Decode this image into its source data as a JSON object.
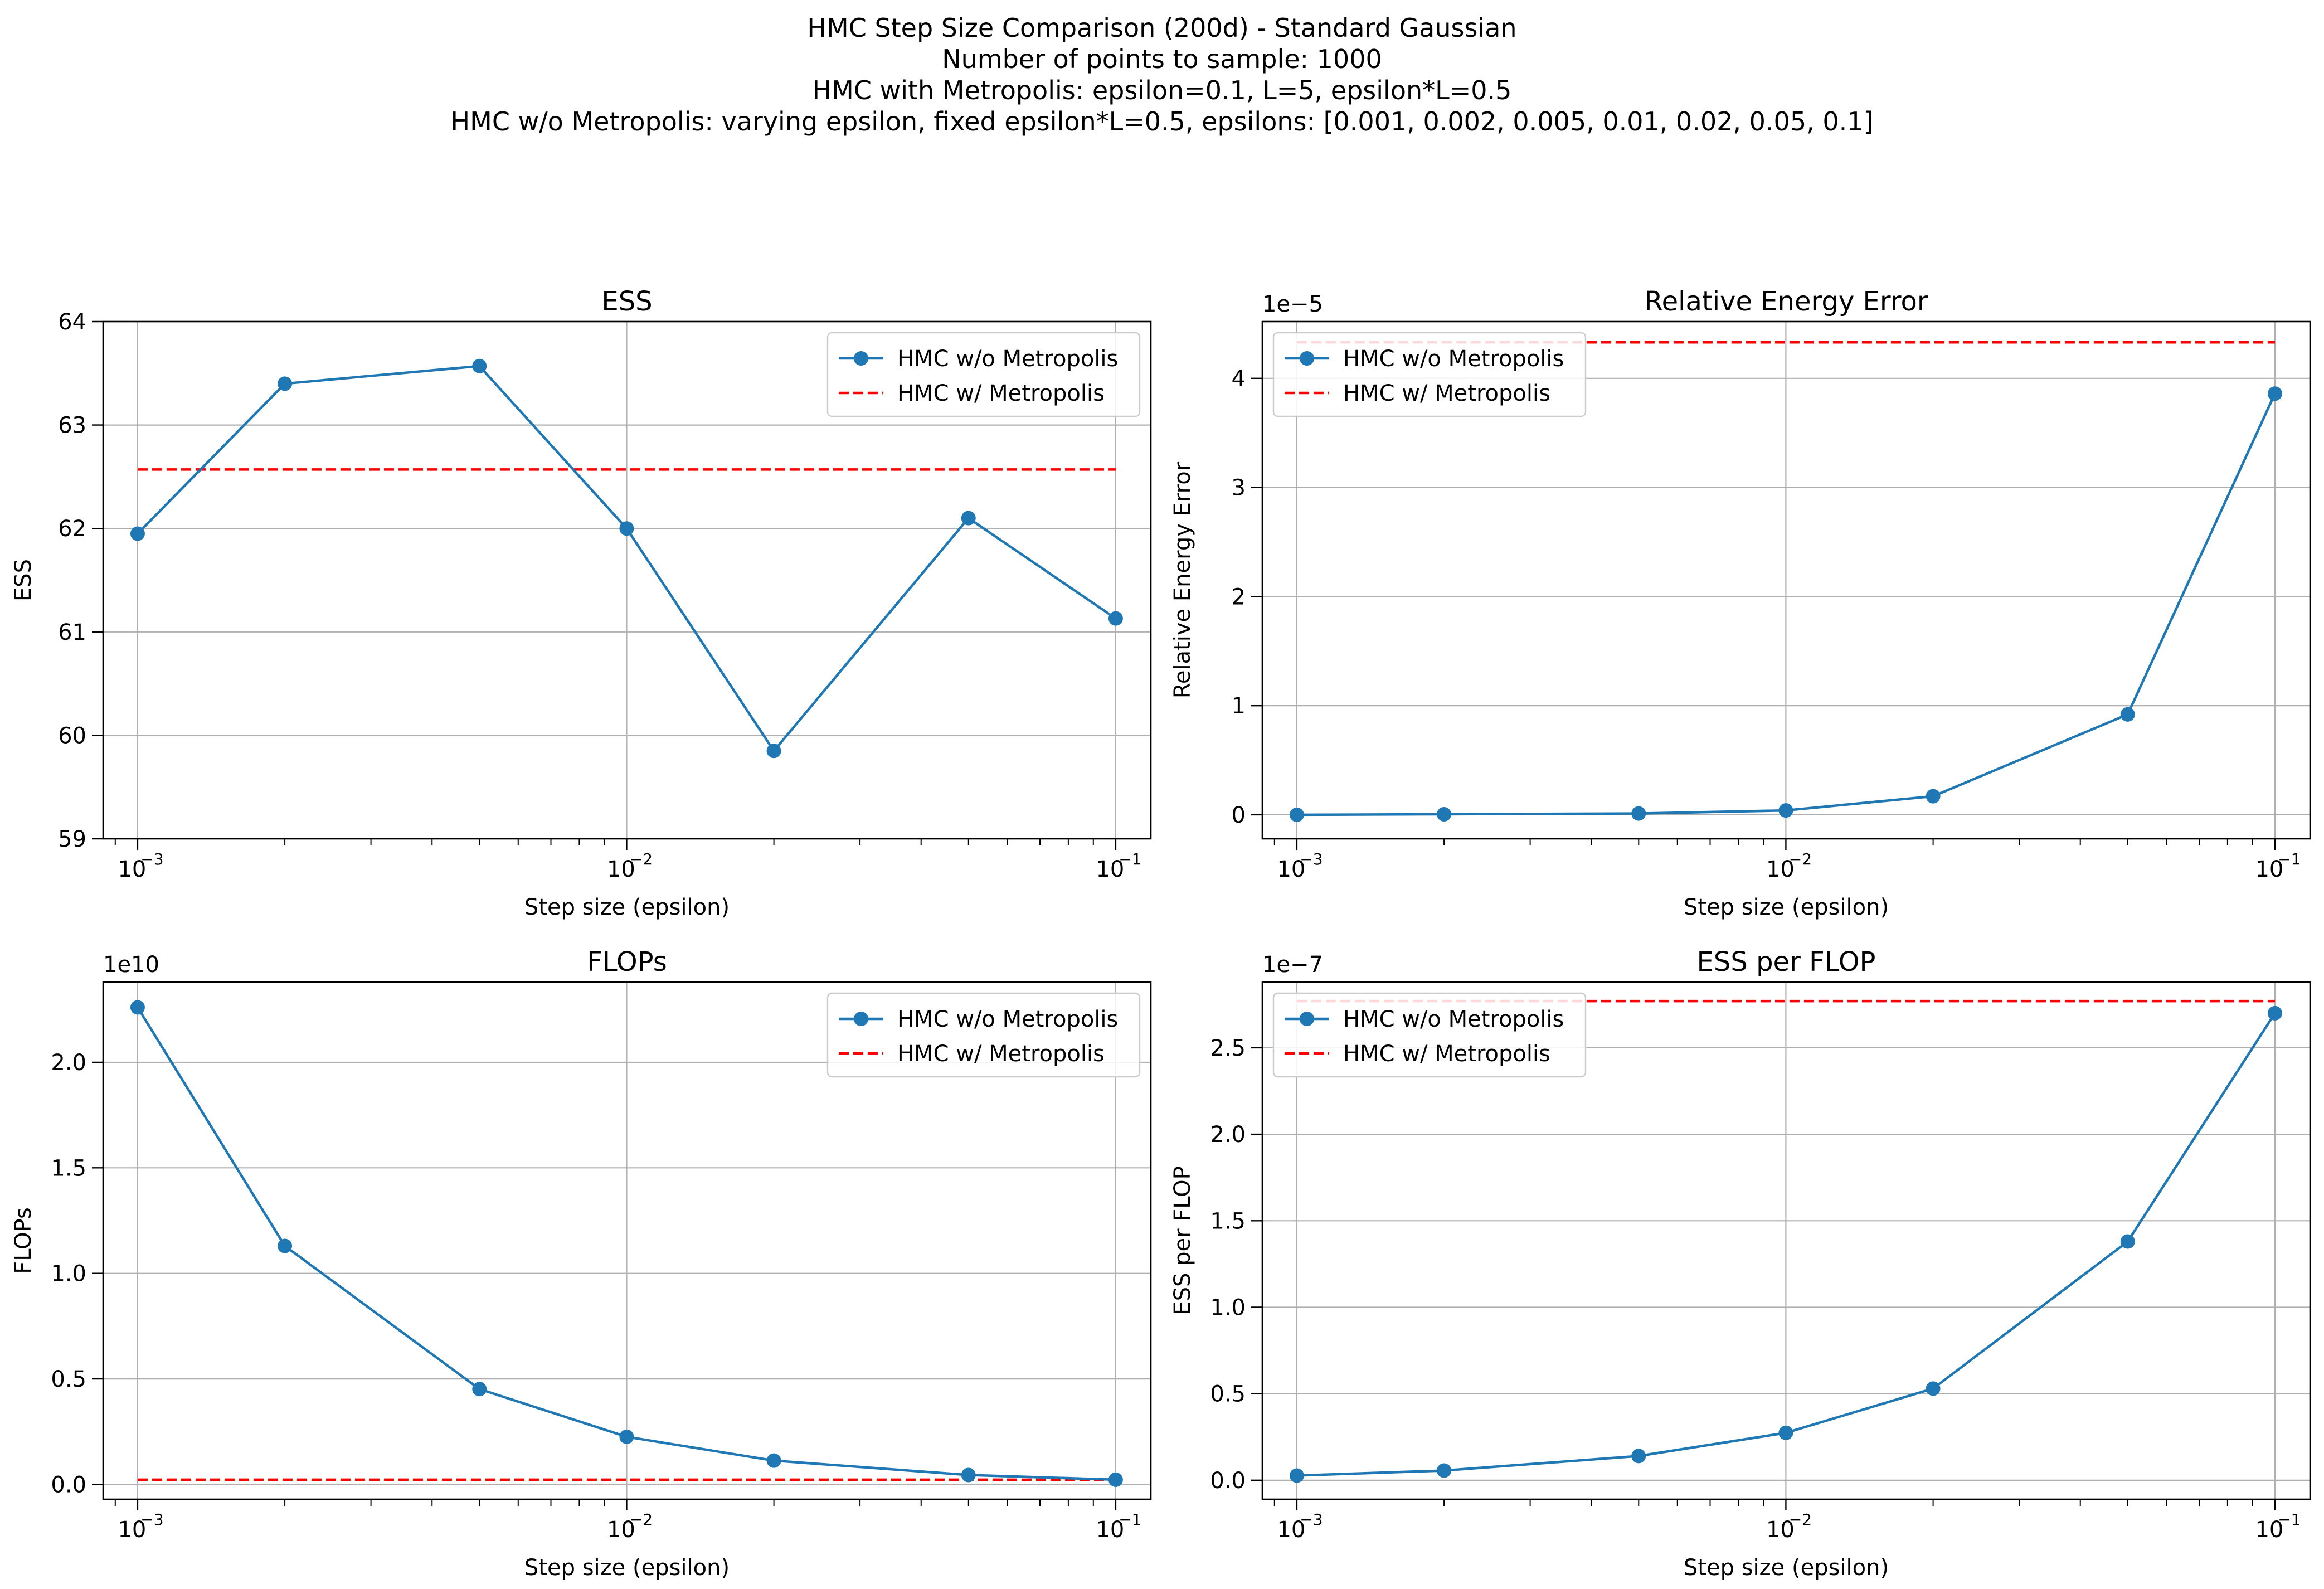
{
  "figure": {
    "suptitle_lines": [
      "HMC Step Size Comparison (200d) - Standard Gaussian",
      "Number of points to sample: 1000",
      "HMC with Metropolis: epsilon=0.1, L=5, epsilon*L=0.5",
      "HMC w/o Metropolis: varying epsilon, fixed epsilon*L=0.5, epsilons: [0.001, 0.002, 0.005, 0.01, 0.02, 0.05, 0.1]"
    ]
  },
  "colors": {
    "series": "#1f77b4",
    "reference": "#ff0000",
    "grid": "#b0b0b0"
  },
  "chart_data": [
    {
      "type": "line",
      "title": "ESS",
      "xlabel": "Step size (epsilon)",
      "ylabel": "ESS",
      "xscale": "log",
      "xlim": [
        0.00085,
        0.118
      ],
      "ylim": [
        59,
        64
      ],
      "yticks": [
        59,
        60,
        61,
        62,
        63,
        64
      ],
      "ytick_labels": [
        "59",
        "60",
        "61",
        "62",
        "63",
        "64"
      ],
      "exponent_label": "",
      "x": [
        0.001,
        0.002,
        0.005,
        0.01,
        0.02,
        0.05,
        0.1
      ],
      "xtick_labels": [
        "10",
        "10",
        "10"
      ],
      "xtick_exponents": [
        "−3",
        "−2",
        "−1"
      ],
      "xtick_values": [
        0.001,
        0.01,
        0.1
      ],
      "grid": true,
      "legend_position": "upper right",
      "series": [
        {
          "name": "HMC w/o Metropolis",
          "style": "solid-marker",
          "values": [
            61.95,
            63.4,
            63.57,
            62.0,
            59.85,
            62.1,
            61.13
          ]
        },
        {
          "name": "HMC w/ Metropolis",
          "style": "dashed",
          "value": 62.57
        }
      ]
    },
    {
      "type": "line",
      "title": "Relative Energy Error",
      "xlabel": "Step size (epsilon)",
      "ylabel": "Relative Energy Error",
      "xscale": "log",
      "xlim": [
        0.00085,
        0.118
      ],
      "ylim": [
        -0.22,
        4.52
      ],
      "yticks": [
        0,
        1,
        2,
        3,
        4
      ],
      "ytick_labels": [
        "0",
        "1",
        "2",
        "3",
        "4"
      ],
      "exponent_label": "1e−5",
      "x": [
        0.001,
        0.002,
        0.005,
        0.01,
        0.02,
        0.05,
        0.1
      ],
      "xtick_labels": [
        "10",
        "10",
        "10"
      ],
      "xtick_exponents": [
        "−3",
        "−2",
        "−1"
      ],
      "xtick_values": [
        0.001,
        0.01,
        0.1
      ],
      "grid": true,
      "legend_position": "upper left",
      "series": [
        {
          "name": "HMC w/o Metropolis",
          "style": "solid-marker",
          "values": [
            0.0,
            0.005,
            0.012,
            0.04,
            0.17,
            0.92,
            3.86
          ]
        },
        {
          "name": "HMC w/ Metropolis",
          "style": "dashed",
          "value": 4.33
        }
      ]
    },
    {
      "type": "line",
      "title": "FLOPs",
      "xlabel": "Step size (epsilon)",
      "ylabel": "FLOPs",
      "xscale": "log",
      "xlim": [
        0.00085,
        0.118
      ],
      "ylim": [
        -0.07,
        2.38
      ],
      "yticks": [
        0,
        0.5,
        1.0,
        1.5,
        2.0
      ],
      "ytick_labels": [
        "0.0",
        "0.5",
        "1.0",
        "1.5",
        "2.0"
      ],
      "exponent_label": "1e10",
      "x": [
        0.001,
        0.002,
        0.005,
        0.01,
        0.02,
        0.05,
        0.1
      ],
      "xtick_labels": [
        "10",
        "10",
        "10"
      ],
      "xtick_exponents": [
        "−3",
        "−2",
        "−1"
      ],
      "xtick_values": [
        0.001,
        0.01,
        0.1
      ],
      "grid": true,
      "legend_position": "upper right",
      "series": [
        {
          "name": "HMC w/o Metropolis",
          "style": "solid-marker",
          "values": [
            2.26,
            1.13,
            0.452,
            0.226,
            0.113,
            0.045,
            0.0226
          ]
        },
        {
          "name": "HMC w/ Metropolis",
          "style": "dashed",
          "value": 0.0226
        }
      ]
    },
    {
      "type": "line",
      "title": "ESS per FLOP",
      "xlabel": "Step size (epsilon)",
      "ylabel": "ESS per FLOP",
      "xscale": "log",
      "xlim": [
        0.00085,
        0.118
      ],
      "ylim": [
        -0.11,
        2.88
      ],
      "yticks": [
        0,
        0.5,
        1.0,
        1.5,
        2.0,
        2.5
      ],
      "ytick_labels": [
        "0.0",
        "0.5",
        "1.0",
        "1.5",
        "2.0",
        "2.5"
      ],
      "exponent_label": "1e−7",
      "x": [
        0.001,
        0.002,
        0.005,
        0.01,
        0.02,
        0.05,
        0.1
      ],
      "xtick_labels": [
        "10",
        "10",
        "10"
      ],
      "xtick_exponents": [
        "−3",
        "−2",
        "−1"
      ],
      "xtick_values": [
        0.001,
        0.01,
        0.1
      ],
      "grid": true,
      "legend_position": "upper left",
      "series": [
        {
          "name": "HMC w/o Metropolis",
          "style": "solid-marker",
          "values": [
            0.027,
            0.056,
            0.14,
            0.274,
            0.53,
            1.38,
            2.7
          ]
        },
        {
          "name": "HMC w/ Metropolis",
          "style": "dashed",
          "value": 2.77
        }
      ]
    }
  ]
}
